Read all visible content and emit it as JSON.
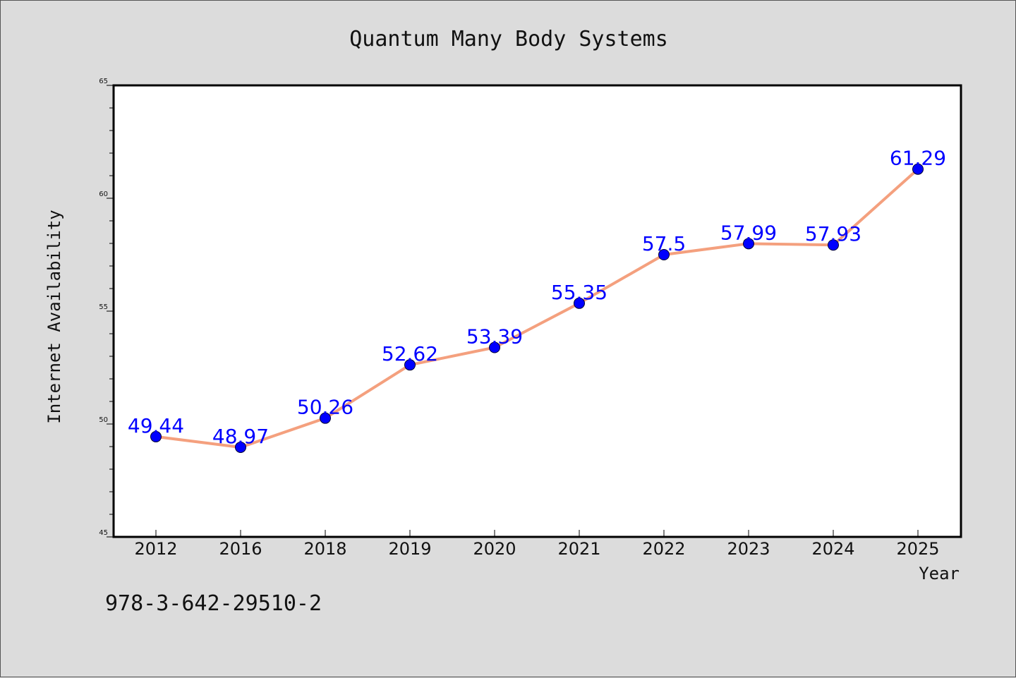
{
  "chart_data": {
    "type": "line",
    "title": "Quantum Many Body Systems",
    "xlabel": "Year",
    "ylabel": "Internet Availability",
    "categories": [
      "2012",
      "2016",
      "2018",
      "2019",
      "2020",
      "2021",
      "2022",
      "2023",
      "2024",
      "2025"
    ],
    "values": [
      49.44,
      48.97,
      50.26,
      52.62,
      53.39,
      55.35,
      57.5,
      57.99,
      57.93,
      61.29
    ],
    "data_labels": [
      "49.44",
      "48.97",
      "50.26",
      "52.62",
      "53.39",
      "55.35",
      "57.5",
      "57.99",
      "57.93",
      "61.29"
    ],
    "ylim": [
      45,
      65
    ],
    "yticks": [
      "45",
      "50",
      "55",
      "60",
      "65"
    ],
    "grid": false,
    "line_color": "#f4a07e",
    "marker_color": "#0000ff",
    "label_color": "#0000ff",
    "background": "#dcdcdc"
  },
  "annotation": "978-3-642-29510-2"
}
